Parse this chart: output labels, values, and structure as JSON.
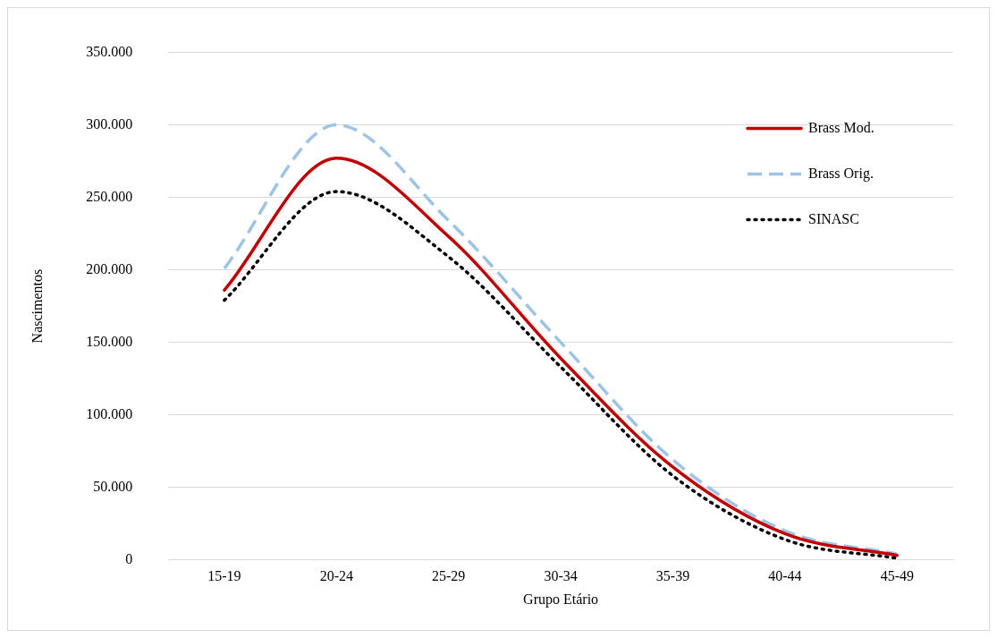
{
  "chart_data": {
    "type": "line",
    "xlabel": "Grupo Etário",
    "ylabel": "Nascimentos",
    "categories": [
      "15-19",
      "20-24",
      "25-29",
      "30-34",
      "35-39",
      "40-44",
      "45-49"
    ],
    "series": [
      {
        "name": "Brass Mod.",
        "color": "#c00000",
        "line_style": "solid",
        "values": [
          186000,
          277000,
          223000,
          139000,
          64000,
          18000,
          3000
        ]
      },
      {
        "name": "Brass Orig.",
        "color": "#9dc3e6",
        "line_style": "dashed",
        "values": [
          201000,
          300000,
          234000,
          150000,
          69000,
          20000,
          4000
        ]
      },
      {
        "name": "SINASC",
        "color": "#000000",
        "line_style": "dotted",
        "values": [
          179000,
          254000,
          209000,
          133000,
          58000,
          14000,
          1000
        ]
      }
    ],
    "ylim": [
      0,
      350000
    ],
    "yticks": [
      0,
      {
        "value": 50000,
        "label": "50.000"
      },
      {
        "value": 100000,
        "label": "100.000"
      },
      {
        "value": 150000,
        "label": "150.000"
      },
      {
        "value": 200000,
        "label": "200.000"
      },
      {
        "value": 250000,
        "label": "250.000"
      },
      {
        "value": 300000,
        "label": "300.000"
      },
      {
        "value": 350000,
        "label": "350.000"
      }
    ],
    "grid": "y",
    "legend": "top right",
    "marker": "none"
  }
}
